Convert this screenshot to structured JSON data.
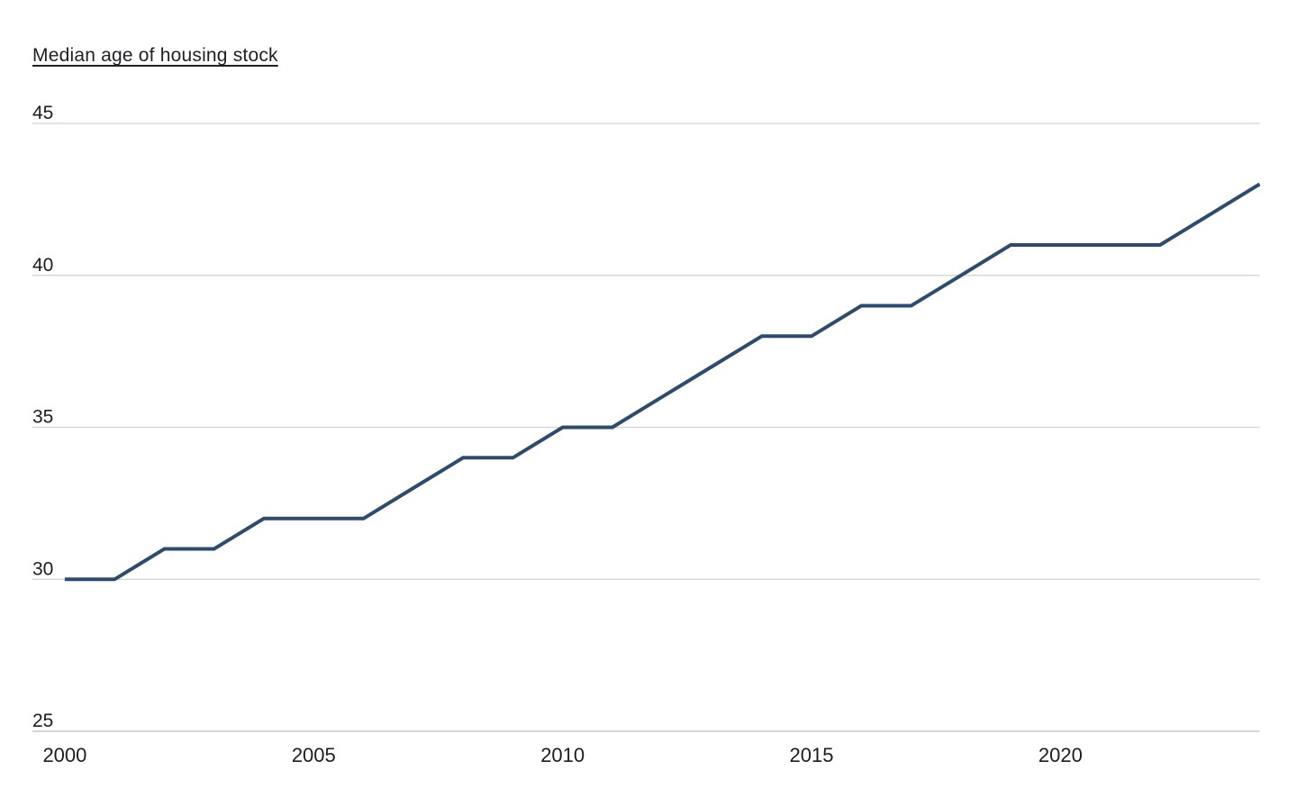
{
  "page": {
    "background": "#ffffff"
  },
  "chart": {
    "title": "Median age of housing stock",
    "title_color": "#1d2126",
    "line_color": "#2c4b6d",
    "gridline_color": "#d9d9d9",
    "axis_line_color": "#c8c8c8",
    "label_color": "#1a1d21"
  },
  "chart_data": {
    "type": "line",
    "title": "Median age of housing stock",
    "x": [
      2000,
      2001,
      2002,
      2003,
      2004,
      2005,
      2006,
      2007,
      2008,
      2009,
      2010,
      2011,
      2012,
      2013,
      2014,
      2015,
      2016,
      2017,
      2018,
      2019,
      2020,
      2021,
      2022,
      2023,
      2024
    ],
    "values": [
      30,
      30,
      31,
      31,
      32,
      32,
      32,
      33,
      34,
      34,
      35,
      35,
      36,
      37,
      38,
      38,
      39,
      39,
      40,
      41,
      41,
      41,
      41,
      42,
      43
    ],
    "series_name": "Median age of housing stock",
    "xlabel": "",
    "ylabel": "",
    "x_ticks": [
      2000,
      2005,
      2010,
      2015,
      2020
    ],
    "y_ticks": [
      25,
      30,
      35,
      40,
      45
    ],
    "xlim": [
      1999.35,
      2024
    ],
    "ylim": [
      25,
      45
    ],
    "grid": "horizontal-only",
    "legend": "none"
  }
}
